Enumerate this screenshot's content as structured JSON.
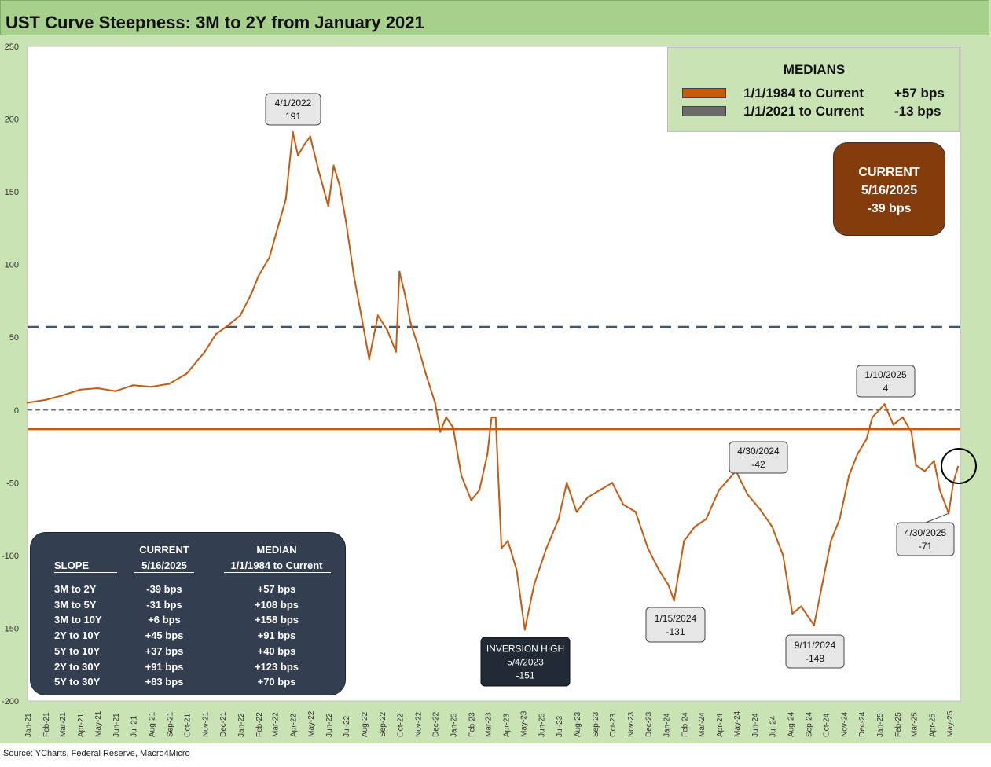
{
  "title": "UST Curve Steepness: 3M to 2Y from January 2021",
  "source": "Source: YCharts, Federal Reserve, Macro4Micro",
  "colors": {
    "series": "#c55a11",
    "median_1984": "#c55a11",
    "median_2021": "#6b6b6b",
    "median_1984_line": "#44546a",
    "current_box": "#843c0c",
    "table_bg": "#333f50"
  },
  "medians": {
    "title": "MEDIANS",
    "rows": [
      {
        "label": "1/1/1984 to Current",
        "value": "+57 bps",
        "swatch_color": "#c55a11"
      },
      {
        "label": "1/1/2021 to Current",
        "value": "-13 bps",
        "swatch_color": "#6b6b6b"
      }
    ]
  },
  "current": {
    "line1": "CURRENT",
    "line2": "5/16/2025",
    "line3": "-39 bps"
  },
  "slope_table": {
    "headers": {
      "current_top": "CURRENT",
      "median_top": "MEDIAN",
      "slope": "SLOPE",
      "current_date": "5/16/2025",
      "median_range": "1/1/1984 to Current"
    },
    "rows": [
      {
        "slope": "3M to 2Y",
        "current": "-39 bps",
        "median": "+57 bps"
      },
      {
        "slope": "3M to 5Y",
        "current": "-31 bps",
        "median": "+108 bps"
      },
      {
        "slope": "3M to 10Y",
        "current": "+6 bps",
        "median": "+158 bps"
      },
      {
        "slope": "2Y to 10Y",
        "current": "+45 bps",
        "median": "+91 bps"
      },
      {
        "slope": "5Y to 10Y",
        "current": "+37 bps",
        "median": "+40 bps"
      },
      {
        "slope": "2Y to 30Y",
        "current": "+91 bps",
        "median": "+123 bps"
      },
      {
        "slope": "5Y to 30Y",
        "current": "+83 bps",
        "median": "+70 bps"
      }
    ]
  },
  "chart_data": {
    "type": "line",
    "title": "UST Curve Steepness: 3M to 2Y from January 2021",
    "ylim": [
      -200,
      250
    ],
    "yticks": [
      250,
      200,
      150,
      100,
      50,
      0,
      -50,
      -100,
      -150,
      -200
    ],
    "xticks": [
      "Jan-21",
      "Feb-21",
      "Mar-21",
      "Apr-21",
      "May-21",
      "Jun-21",
      "Jul-21",
      "Aug-21",
      "Sep-21",
      "Oct-21",
      "Nov-21",
      "Dec-21",
      "Jan-22",
      "Feb-22",
      "Mar-22",
      "Apr-22",
      "May-22",
      "Jun-22",
      "Jul-22",
      "Aug-22",
      "Sep-22",
      "Oct-22",
      "Nov-22",
      "Dec-22",
      "Jan-23",
      "Feb-23",
      "Mar-23",
      "Apr-23",
      "May-23",
      "Jun-23",
      "Jul-23",
      "Aug-23",
      "Sep-23",
      "Oct-23",
      "Nov-23",
      "Dec-23",
      "Jan-24",
      "Feb-24",
      "Mar-24",
      "Apr-24",
      "May-24",
      "Jun-24",
      "Jul-24",
      "Aug-24",
      "Sep-24",
      "Oct-24",
      "Nov-24",
      "Dec-24",
      "Jan-25",
      "Feb-25",
      "Mar-25",
      "Apr-25",
      "May-25"
    ],
    "series": [
      {
        "values": [
          [
            "2021-01-01",
            5
          ],
          [
            "2021-02-01",
            7
          ],
          [
            "2021-03-01",
            10
          ],
          [
            "2021-04-01",
            14
          ],
          [
            "2021-05-01",
            15
          ],
          [
            "2021-06-01",
            13
          ],
          [
            "2021-07-01",
            17
          ],
          [
            "2021-08-01",
            16
          ],
          [
            "2021-09-01",
            18
          ],
          [
            "2021-10-01",
            25
          ],
          [
            "2021-11-01",
            40
          ],
          [
            "2021-11-20",
            52
          ],
          [
            "2021-12-10",
            58
          ],
          [
            "2022-01-01",
            65
          ],
          [
            "2022-01-20",
            80
          ],
          [
            "2022-02-01",
            92
          ],
          [
            "2022-02-20",
            105
          ],
          [
            "2022-03-01",
            118
          ],
          [
            "2022-03-20",
            145
          ],
          [
            "2022-04-01",
            191
          ],
          [
            "2022-04-10",
            175
          ],
          [
            "2022-04-20",
            182
          ],
          [
            "2022-05-01",
            188
          ],
          [
            "2022-05-15",
            165
          ],
          [
            "2022-06-01",
            140
          ],
          [
            "2022-06-10",
            168
          ],
          [
            "2022-06-20",
            155
          ],
          [
            "2022-07-01",
            130
          ],
          [
            "2022-07-15",
            92
          ],
          [
            "2022-08-01",
            55
          ],
          [
            "2022-08-10",
            35
          ],
          [
            "2022-08-25",
            65
          ],
          [
            "2022-09-10",
            55
          ],
          [
            "2022-09-25",
            40
          ],
          [
            "2022-10-01",
            95
          ],
          [
            "2022-10-10",
            80
          ],
          [
            "2022-10-20",
            60
          ],
          [
            "2022-11-01",
            45
          ],
          [
            "2022-11-15",
            25
          ],
          [
            "2022-12-01",
            5
          ],
          [
            "2022-12-10",
            -15
          ],
          [
            "2022-12-20",
            -5
          ],
          [
            "2023-01-01",
            -12
          ],
          [
            "2023-01-15",
            -45
          ],
          [
            "2023-02-01",
            -62
          ],
          [
            "2023-02-15",
            -55
          ],
          [
            "2023-03-01",
            -30
          ],
          [
            "2023-03-08",
            -5
          ],
          [
            "2023-03-15",
            -5
          ],
          [
            "2023-03-25",
            -95
          ],
          [
            "2023-04-05",
            -90
          ],
          [
            "2023-04-20",
            -110
          ],
          [
            "2023-05-04",
            -151
          ],
          [
            "2023-05-20",
            -120
          ],
          [
            "2023-06-10",
            -95
          ],
          [
            "2023-07-01",
            -75
          ],
          [
            "2023-07-15",
            -50
          ],
          [
            "2023-08-01",
            -70
          ],
          [
            "2023-08-20",
            -60
          ],
          [
            "2023-09-10",
            -55
          ],
          [
            "2023-10-01",
            -50
          ],
          [
            "2023-10-20",
            -65
          ],
          [
            "2023-11-10",
            -70
          ],
          [
            "2023-12-01",
            -95
          ],
          [
            "2023-12-20",
            -110
          ],
          [
            "2024-01-05",
            -120
          ],
          [
            "2024-01-15",
            -131
          ],
          [
            "2024-02-01",
            -90
          ],
          [
            "2024-02-20",
            -80
          ],
          [
            "2024-03-10",
            -75
          ],
          [
            "2024-04-01",
            -55
          ],
          [
            "2024-04-30",
            -42
          ],
          [
            "2024-05-20",
            -58
          ],
          [
            "2024-06-10",
            -68
          ],
          [
            "2024-07-01",
            -80
          ],
          [
            "2024-07-20",
            -100
          ],
          [
            "2024-08-05",
            -140
          ],
          [
            "2024-08-20",
            -135
          ],
          [
            "2024-09-11",
            -148
          ],
          [
            "2024-09-25",
            -120
          ],
          [
            "2024-10-10",
            -90
          ],
          [
            "2024-10-25",
            -75
          ],
          [
            "2024-11-10",
            -45
          ],
          [
            "2024-11-25",
            -30
          ],
          [
            "2024-12-10",
            -20
          ],
          [
            "2024-12-20",
            -5
          ],
          [
            "2025-01-10",
            4
          ],
          [
            "2025-01-25",
            -10
          ],
          [
            "2025-02-10",
            -5
          ],
          [
            "2025-02-25",
            -15
          ],
          [
            "2025-03-05",
            -38
          ],
          [
            "2025-03-20",
            -42
          ],
          [
            "2025-04-05",
            -35
          ],
          [
            "2025-04-15",
            -55
          ],
          [
            "2025-04-30",
            -71
          ],
          [
            "2025-05-08",
            -50
          ],
          [
            "2025-05-16",
            -39
          ]
        ]
      }
    ],
    "reference_lines": [
      {
        "label": "1/1/1984 to Current",
        "value": 57,
        "style": "dashed"
      },
      {
        "label": "1/1/2021 to Current",
        "value": -13,
        "style": "solid"
      },
      {
        "label": "",
        "value": 0,
        "style": "dashed-thin"
      }
    ],
    "annotations": [
      {
        "date": "2022-04-01",
        "line1": "4/1/2022",
        "line2": "191",
        "style": "light"
      },
      {
        "date": "2023-05-04",
        "line1": "INVERSION HIGH",
        "line2": "5/4/2023",
        "line3": "-151",
        "style": "dark"
      },
      {
        "date": "2024-01-15",
        "line1": "1/15/2024",
        "line2": "-131",
        "style": "light"
      },
      {
        "date": "2024-04-30",
        "line1": "4/30/2024",
        "line2": "-42",
        "style": "light"
      },
      {
        "date": "2024-09-11",
        "line1": "9/11/2024",
        "line2": "-148",
        "style": "light"
      },
      {
        "date": "2025-01-10",
        "line1": "1/10/2025",
        "line2": "4",
        "style": "light"
      },
      {
        "date": "2025-04-30",
        "line1": "4/30/2025",
        "line2": "-71",
        "style": "light"
      }
    ]
  }
}
